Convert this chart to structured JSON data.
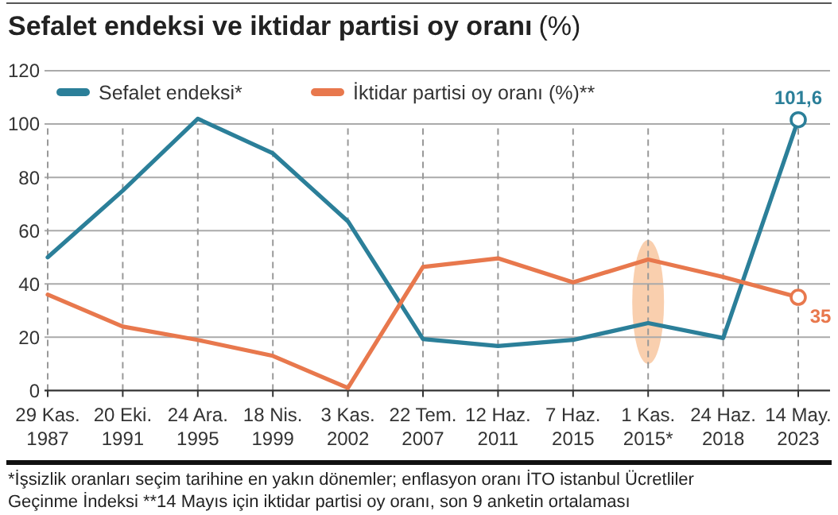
{
  "chart_data": {
    "type": "line",
    "title": "Sefalet endeksi ve iktidar partisi oy oranı",
    "subtitle": "(%)",
    "categories": [
      "29 Kas. 1987",
      "20 Eki. 1991",
      "24 Ara. 1995",
      "18 Nis. 1999",
      "3 Kas. 2002",
      "22 Tem. 2007",
      "12 Haz. 2011",
      "7 Haz. 2015",
      "1 Kas. 2015*",
      "24 Haz. 2018",
      "14 May. 2023"
    ],
    "series": [
      {
        "name": "Sefalet endeksi*",
        "color": "#2b7f99",
        "values": [
          50,
          75,
          102,
          89,
          63.5,
          19.3,
          16.7,
          19,
          25.3,
          19.7,
          101.6
        ],
        "value_labels": [
          null,
          null,
          null,
          null,
          null,
          null,
          null,
          null,
          null,
          null,
          "101,6"
        ]
      },
      {
        "name": "İktidar partisi oy oranı (%)**",
        "color": "#e8784d",
        "values": [
          36,
          24,
          19,
          13,
          1,
          46.4,
          49.6,
          40.6,
          49.2,
          42.6,
          35
        ],
        "value_labels": [
          null,
          null,
          null,
          null,
          null,
          null,
          null,
          null,
          null,
          null,
          "35"
        ]
      }
    ],
    "ylim": [
      0,
      120
    ],
    "yticks": [
      0,
      20,
      40,
      60,
      80,
      100,
      120
    ],
    "grid": true,
    "legend": "top",
    "line_style": "solid",
    "annotations": [
      "*İşsizlik oranları seçim tarihine en yakın dönemler; enflasyon oranı İTO istanbul Ücretliler",
      "Geçinme İndeksi **14 Mayıs için iktidar partisi oy oranı, son 9 anketin ortalaması"
    ]
  }
}
